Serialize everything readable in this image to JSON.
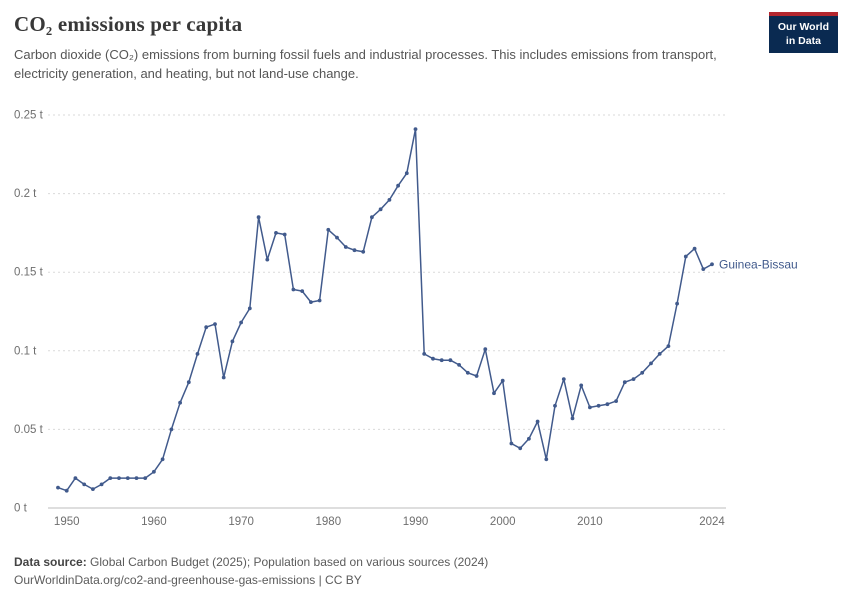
{
  "header": {
    "title": "CO₂ emissions per capita",
    "subtitle": "Carbon dioxide (CO₂) emissions from burning fossil fuels and industrial processes. This includes emissions from transport, electricity generation, and heating, but not land-use change.",
    "logo": {
      "line1": "Our World",
      "line2": "in Data",
      "bg_color": "#0a2a51",
      "accent_color": "#b3262e"
    }
  },
  "chart_data": {
    "type": "line",
    "title": "CO₂ emissions per capita",
    "unit": "t",
    "xlabel": "",
    "ylabel": "",
    "xlim": [
      1949,
      2024
    ],
    "ylim": [
      0,
      0.25
    ],
    "grid": "horizontal-dashed",
    "legend_position": "end-of-line-label",
    "line_color": "#415a8c",
    "grid_color": "#dadada",
    "axis_color": "#bdbdbd",
    "tick_color": "#6e6e6e",
    "yticks": [
      {
        "value": 0,
        "label": "0 t"
      },
      {
        "value": 0.05,
        "label": "0.05 t"
      },
      {
        "value": 0.1,
        "label": "0.1 t"
      },
      {
        "value": 0.15,
        "label": "0.15 t"
      },
      {
        "value": 0.2,
        "label": "0.2 t"
      },
      {
        "value": 0.25,
        "label": "0.25 t"
      }
    ],
    "xticks": [
      {
        "value": 1950,
        "label": "1950"
      },
      {
        "value": 1960,
        "label": "1960"
      },
      {
        "value": 1970,
        "label": "1970"
      },
      {
        "value": 1980,
        "label": "1980"
      },
      {
        "value": 1990,
        "label": "1990"
      },
      {
        "value": 2000,
        "label": "2000"
      },
      {
        "value": 2010,
        "label": "2010"
      },
      {
        "value": 2024,
        "label": "2024"
      }
    ],
    "series": [
      {
        "name": "Guinea-Bissau",
        "x": [
          1949,
          1950,
          1951,
          1952,
          1953,
          1954,
          1955,
          1956,
          1957,
          1958,
          1959,
          1960,
          1961,
          1962,
          1963,
          1964,
          1965,
          1966,
          1967,
          1968,
          1969,
          1970,
          1971,
          1972,
          1973,
          1974,
          1975,
          1976,
          1977,
          1978,
          1979,
          1980,
          1981,
          1982,
          1983,
          1984,
          1985,
          1986,
          1987,
          1988,
          1989,
          1990,
          1991,
          1992,
          1993,
          1994,
          1995,
          1996,
          1997,
          1998,
          1999,
          2000,
          2001,
          2002,
          2003,
          2004,
          2005,
          2006,
          2007,
          2008,
          2009,
          2010,
          2011,
          2012,
          2013,
          2014,
          2015,
          2016,
          2017,
          2018,
          2019,
          2020,
          2021,
          2022,
          2023,
          2024
        ],
        "values": [
          0.013,
          0.011,
          0.019,
          0.015,
          0.012,
          0.015,
          0.019,
          0.019,
          0.019,
          0.019,
          0.019,
          0.023,
          0.031,
          0.05,
          0.067,
          0.08,
          0.098,
          0.115,
          0.117,
          0.083,
          0.106,
          0.118,
          0.127,
          0.185,
          0.158,
          0.175,
          0.174,
          0.139,
          0.138,
          0.131,
          0.132,
          0.177,
          0.172,
          0.166,
          0.164,
          0.163,
          0.185,
          0.19,
          0.196,
          0.205,
          0.213,
          0.241,
          0.098,
          0.095,
          0.094,
          0.094,
          0.091,
          0.086,
          0.084,
          0.101,
          0.073,
          0.081,
          0.041,
          0.038,
          0.044,
          0.055,
          0.031,
          0.065,
          0.082,
          0.057,
          0.078,
          0.064,
          0.065,
          0.066,
          0.068,
          0.08,
          0.082,
          0.086,
          0.092,
          0.098,
          0.103,
          0.13,
          0.16,
          0.165,
          0.152,
          0.155
        ]
      }
    ]
  },
  "footer": {
    "source_label": "Data source:",
    "source_text": "Global Carbon Budget (2025); Population based on various sources (2024)",
    "link_text": "OurWorldinData.org/co2-and-greenhouse-gas-emissions | CC BY"
  }
}
